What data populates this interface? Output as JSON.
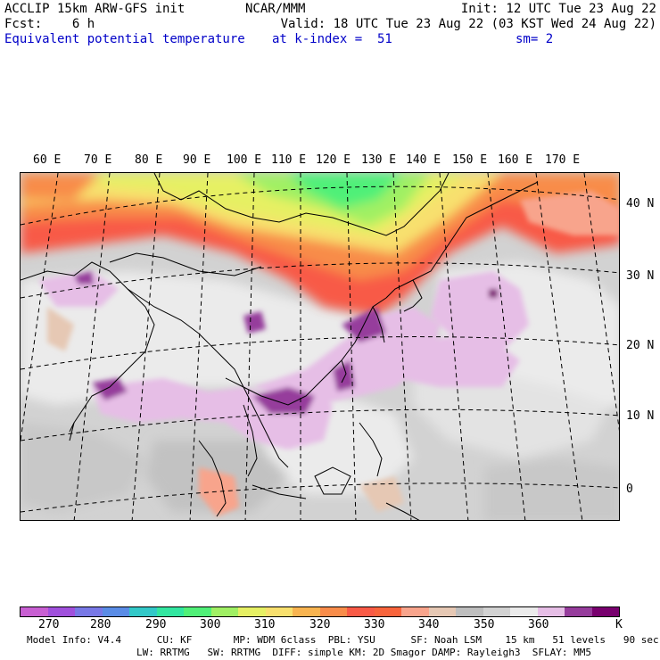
{
  "header": {
    "line1_left": "ACCLIP 15km ARW-GFS init",
    "line1_center": "NCAR/MMM",
    "line1_right": "Init: 12 UTC Tue 23 Aug 22",
    "line2_left": "Fcst:    6 h",
    "line2_right": "Valid: 18 UTC Tue 23 Aug 22 (03 KST Wed 24 Aug 22)",
    "line3_field": "Equivalent potential temperature",
    "line3_level": "at k-index =  51",
    "line3_smooth": "sm= 2"
  },
  "map": {
    "lon_labels": [
      "60 E",
      "70 E",
      "80 E",
      "90 E",
      "100 E",
      "110 E",
      "120 E",
      "130 E",
      "140 E",
      "150 E",
      "160 E",
      "170 E"
    ],
    "lat_labels": [
      "40 N",
      "30 N",
      "20 N",
      "10 N",
      "0"
    ]
  },
  "colorbar": {
    "colors": [
      "#c85fd2",
      "#a050dc",
      "#7878e6",
      "#5a8ce6",
      "#32c8c8",
      "#32e6a0",
      "#50f078",
      "#a0f064",
      "#e6f064",
      "#f8e06e",
      "#f8b450",
      "#f88c4a",
      "#f85a46",
      "#f8643c",
      "#f8a48c",
      "#e6c8b4",
      "#bebebe",
      "#d2d2d2",
      "#ebebeb",
      "#e6bee6",
      "#963c9c",
      "#78006e"
    ],
    "tick_labels": [
      "270",
      "280",
      "290",
      "300",
      "310",
      "320",
      "330",
      "340",
      "350",
      "360"
    ],
    "unit": "K"
  },
  "footer": {
    "line1": "Model Info: V4.4      CU: KF       MP: WDM 6class  PBL: YSU      SF: Noah LSM    15 km   51 levels   90 sec",
    "line2": "LW: RRTMG   SW: RRTMG  DIFF: simple KM: 2D Smagor DAMP: Rayleigh3  SFLAY: MM5"
  }
}
